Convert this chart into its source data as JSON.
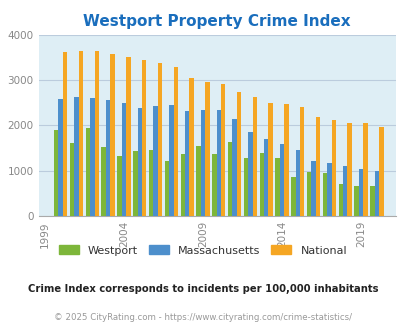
{
  "title": "Westport Property Crime Index",
  "title_color": "#1a6ebd",
  "years": [
    2000,
    2001,
    2002,
    2003,
    2004,
    2005,
    2006,
    2007,
    2008,
    2009,
    2010,
    2011,
    2012,
    2013,
    2014,
    2015,
    2016,
    2017,
    2018,
    2019,
    2020
  ],
  "westport": [
    1900,
    1620,
    1940,
    1520,
    1330,
    1430,
    1450,
    1220,
    1380,
    1540,
    1370,
    1640,
    1280,
    1390,
    1280,
    870,
    980,
    950,
    700,
    660,
    660
  ],
  "massachusetts": [
    2580,
    2630,
    2610,
    2570,
    2490,
    2380,
    2420,
    2440,
    2320,
    2330,
    2350,
    2140,
    1850,
    1710,
    1590,
    1460,
    1220,
    1170,
    1100,
    1050,
    1000
  ],
  "national": [
    3620,
    3650,
    3640,
    3580,
    3510,
    3450,
    3370,
    3280,
    3050,
    2960,
    2910,
    2740,
    2620,
    2500,
    2470,
    2400,
    2190,
    2110,
    2050,
    2050,
    1960
  ],
  "westport_color": "#7db63a",
  "massachusetts_color": "#4d8fcc",
  "national_color": "#f5a623",
  "background_color": "#deeef5",
  "grid_color": "#bbccdd",
  "ylim": [
    0,
    4000
  ],
  "yticks": [
    0,
    1000,
    2000,
    3000,
    4000
  ],
  "xlabel_years": [
    1999,
    2004,
    2009,
    2014,
    2019
  ],
  "xlim_left": 1998.6,
  "xlim_right": 2021.2,
  "footnote1": "Crime Index corresponds to incidents per 100,000 inhabitants",
  "footnote2": "© 2025 CityRating.com - https://www.cityrating.com/crime-statistics/",
  "footnote1_color": "#222222",
  "footnote2_color": "#999999",
  "bar_width": 0.28
}
